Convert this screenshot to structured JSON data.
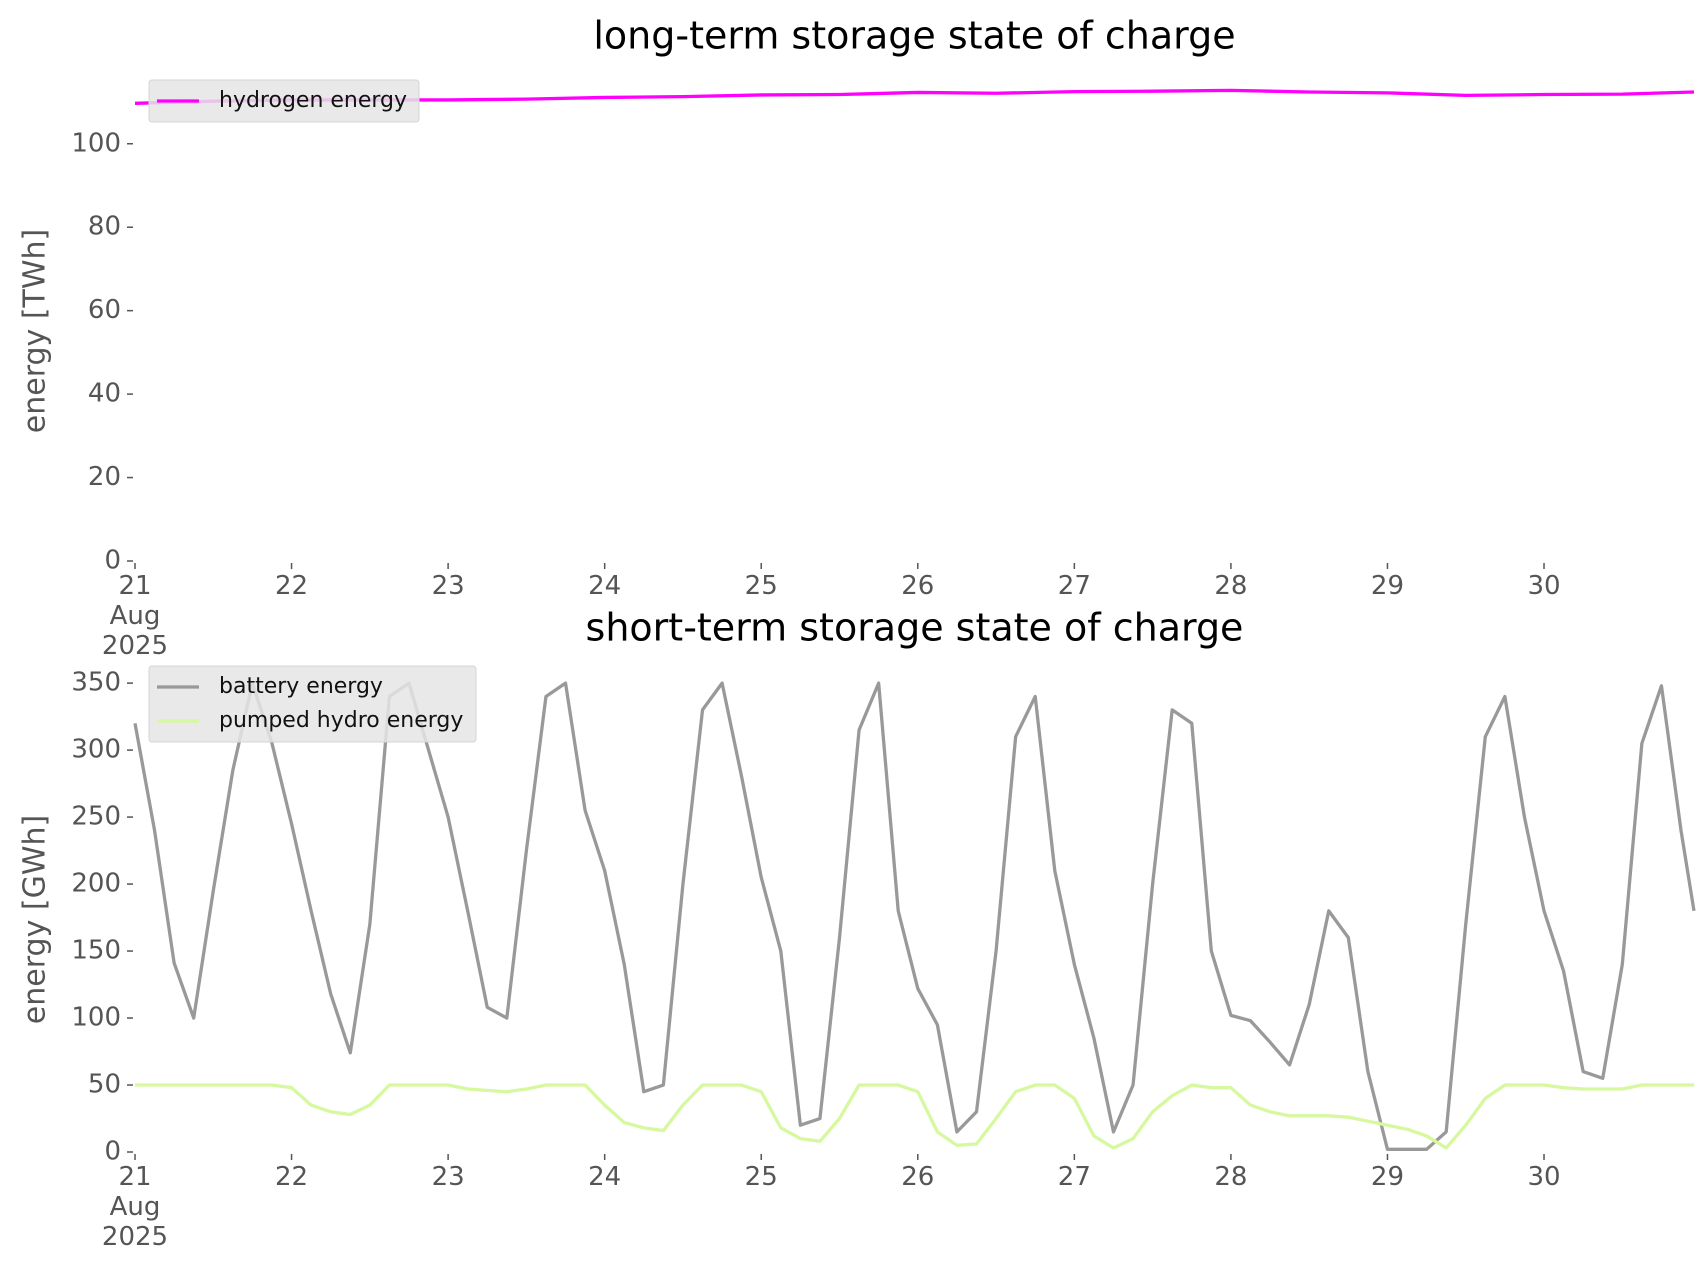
{
  "chart_data": [
    {
      "type": "line",
      "title": "long-term storage state of charge",
      "ylabel": "energy [TWh]",
      "x": [
        21,
        21.5,
        22,
        22.5,
        23,
        23.5,
        24,
        24.5,
        25,
        25.5,
        26,
        26.5,
        27,
        27.5,
        28,
        28.5,
        29,
        29.5,
        30,
        30.5,
        30.958
      ],
      "series": [
        {
          "name": "hydrogen energy",
          "color": "#ff00ff",
          "values": [
            109.7,
            110.2,
            110.5,
            110.5,
            110.5,
            110.7,
            111.1,
            111.3,
            111.7,
            111.8,
            112.3,
            112.1,
            112.5,
            112.6,
            112.8,
            112.4,
            112.2,
            111.6,
            111.8,
            111.9,
            112.4
          ]
        }
      ],
      "xlim": [
        21,
        30.958
      ],
      "ylim": [
        0,
        116
      ],
      "xticks": [
        {
          "value": 21,
          "label": "21\nAug\n2025"
        },
        22,
        23,
        24,
        25,
        26,
        27,
        28,
        29,
        30
      ],
      "yticks": [
        0,
        20,
        40,
        60,
        80,
        100
      ],
      "grid": false,
      "legend": "upper left"
    },
    {
      "type": "line",
      "title": "short-term storage state of charge",
      "ylabel": "energy [GWh]",
      "x": [
        21,
        21.125,
        21.25,
        21.375,
        21.5,
        21.625,
        21.75,
        21.875,
        22,
        22.125,
        22.25,
        22.375,
        22.5,
        22.625,
        22.75,
        22.875,
        23,
        23.125,
        23.25,
        23.375,
        23.5,
        23.625,
        23.75,
        23.875,
        24,
        24.125,
        24.25,
        24.375,
        24.5,
        24.625,
        24.75,
        24.875,
        25,
        25.125,
        25.25,
        25.375,
        25.5,
        25.625,
        25.75,
        25.875,
        26,
        26.125,
        26.25,
        26.375,
        26.5,
        26.625,
        26.75,
        26.875,
        27,
        27.125,
        27.25,
        27.375,
        27.5,
        27.625,
        27.75,
        27.875,
        28,
        28.125,
        28.25,
        28.375,
        28.5,
        28.625,
        28.75,
        28.875,
        29,
        29.125,
        29.25,
        29.375,
        29.5,
        29.625,
        29.75,
        29.875,
        30,
        30.125,
        30.25,
        30.375,
        30.5,
        30.625,
        30.75,
        30.875,
        30.958
      ],
      "series": [
        {
          "name": "battery energy",
          "color": "#999999",
          "values": [
            320,
            240,
            141,
            100,
            195,
            285,
            350,
            305,
            245,
            180,
            118,
            74,
            170,
            340,
            350,
            300,
            250,
            180,
            108,
            100,
            225,
            340,
            350,
            255,
            210,
            140,
            45,
            50,
            200,
            330,
            350,
            280,
            205,
            150,
            20,
            25,
            160,
            315,
            350,
            180,
            122,
            95,
            15,
            30,
            150,
            310,
            340,
            210,
            140,
            85,
            15,
            50,
            200,
            330,
            320,
            150,
            102,
            98,
            82,
            65,
            110,
            180,
            160,
            60,
            2,
            2,
            2,
            15,
            170,
            310,
            340,
            250,
            180,
            135,
            60,
            55,
            140,
            305,
            348,
            240,
            180
          ]
        },
        {
          "name": "pumped hydro energy",
          "color": "#d6f89e",
          "values": [
            50,
            50,
            50,
            50,
            50,
            50,
            50,
            50,
            48,
            35,
            30,
            28,
            35,
            50,
            50,
            50,
            50,
            47,
            46,
            45,
            47,
            50,
            50,
            50,
            35,
            22,
            18,
            16,
            35,
            50,
            50,
            50,
            45,
            18,
            10,
            8,
            25,
            50,
            50,
            50,
            45,
            15,
            5,
            6,
            25,
            45,
            50,
            50,
            40,
            12,
            3,
            10,
            30,
            42,
            50,
            48,
            48,
            35,
            30,
            27,
            27,
            27,
            26,
            23,
            20,
            17,
            12,
            3,
            20,
            40,
            50,
            50,
            50,
            48,
            47,
            47,
            47,
            50,
            50,
            50,
            50
          ]
        }
      ],
      "xlim": [
        21,
        30.958
      ],
      "ylim": [
        0,
        365
      ],
      "xticks": [
        {
          "value": 21,
          "label": "21\nAug\n2025"
        },
        22,
        23,
        24,
        25,
        26,
        27,
        28,
        29,
        30
      ],
      "yticks": [
        0,
        50,
        100,
        150,
        200,
        250,
        300,
        350
      ],
      "grid": false,
      "legend": "upper left"
    }
  ]
}
